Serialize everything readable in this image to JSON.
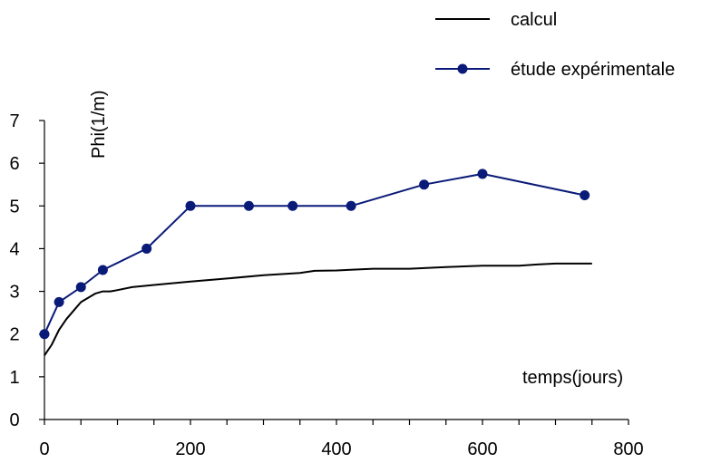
{
  "chart_data": {
    "type": "line",
    "title": "",
    "xlabel": "temps(jours)",
    "ylabel": "Phi(1/m)",
    "xlim": [
      0,
      800
    ],
    "ylim": [
      0,
      7
    ],
    "x_ticks": [
      0,
      200,
      400,
      600,
      800
    ],
    "y_ticks": [
      0,
      1,
      2,
      3,
      4,
      5,
      6,
      7
    ],
    "grid": false,
    "legend_position": "top-right",
    "series": [
      {
        "name": "calcul",
        "color": "#000000",
        "marker": "none",
        "x": [
          0,
          10,
          20,
          30,
          40,
          50,
          60,
          70,
          80,
          90,
          100,
          120,
          150,
          200,
          250,
          300,
          350,
          370,
          400,
          450,
          500,
          550,
          600,
          650,
          675,
          700,
          750
        ],
        "y": [
          1.5,
          1.75,
          2.1,
          2.35,
          2.55,
          2.75,
          2.85,
          2.95,
          3.0,
          3.0,
          3.03,
          3.1,
          3.15,
          3.23,
          3.3,
          3.38,
          3.43,
          3.48,
          3.49,
          3.53,
          3.53,
          3.57,
          3.6,
          3.6,
          3.63,
          3.65,
          3.65
        ]
      },
      {
        "name": "étude expérimentale",
        "color": "#0a1a78",
        "marker": "circle",
        "x": [
          0,
          20,
          50,
          80,
          140,
          200,
          280,
          340,
          420,
          520,
          600,
          740
        ],
        "y": [
          2.0,
          2.75,
          3.1,
          3.5,
          4.0,
          5.0,
          5.0,
          5.0,
          5.0,
          5.5,
          5.75,
          5.25
        ]
      }
    ]
  }
}
